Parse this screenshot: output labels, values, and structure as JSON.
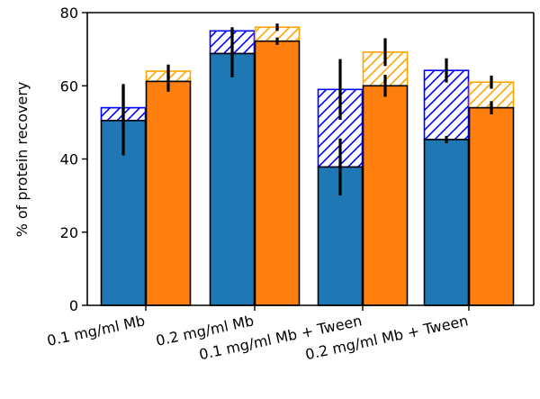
{
  "chart_data": {
    "type": "bar",
    "title": "",
    "xlabel": "",
    "ylabel": "% of protein recovery",
    "ylim": [
      0,
      80
    ],
    "yticks": [
      0,
      20,
      40,
      60,
      80
    ],
    "grid": false,
    "categories": [
      "0.1 mg/ml Mb",
      "0.2 mg/ml Mb",
      "0.1 mg/ml Mb + Tween",
      "0.2 mg/ml Mb + Tween"
    ],
    "series": [
      {
        "color": "#1f77b4",
        "hatch_color": "#0000ff",
        "values": [
          50.5,
          68.8,
          37.8,
          45.3
        ],
        "errors": [
          9.5,
          6.5,
          7.8,
          1.0
        ],
        "hatched_top": [
          54.0,
          75.0,
          59.0,
          64.2
        ],
        "hatched_errors": [
          6.5,
          1.0,
          8.3,
          3.3
        ]
      },
      {
        "color": "#ff7f0e",
        "hatch_color": "#ffa500",
        "values": [
          61.2,
          72.2,
          60.0,
          54.0
        ],
        "errors": [
          2.8,
          1.0,
          3.0,
          1.8
        ],
        "hatched_top": [
          64.0,
          76.0,
          69.2,
          61.0
        ],
        "hatched_errors": [
          1.8,
          1.0,
          3.8,
          1.8
        ]
      }
    ]
  }
}
